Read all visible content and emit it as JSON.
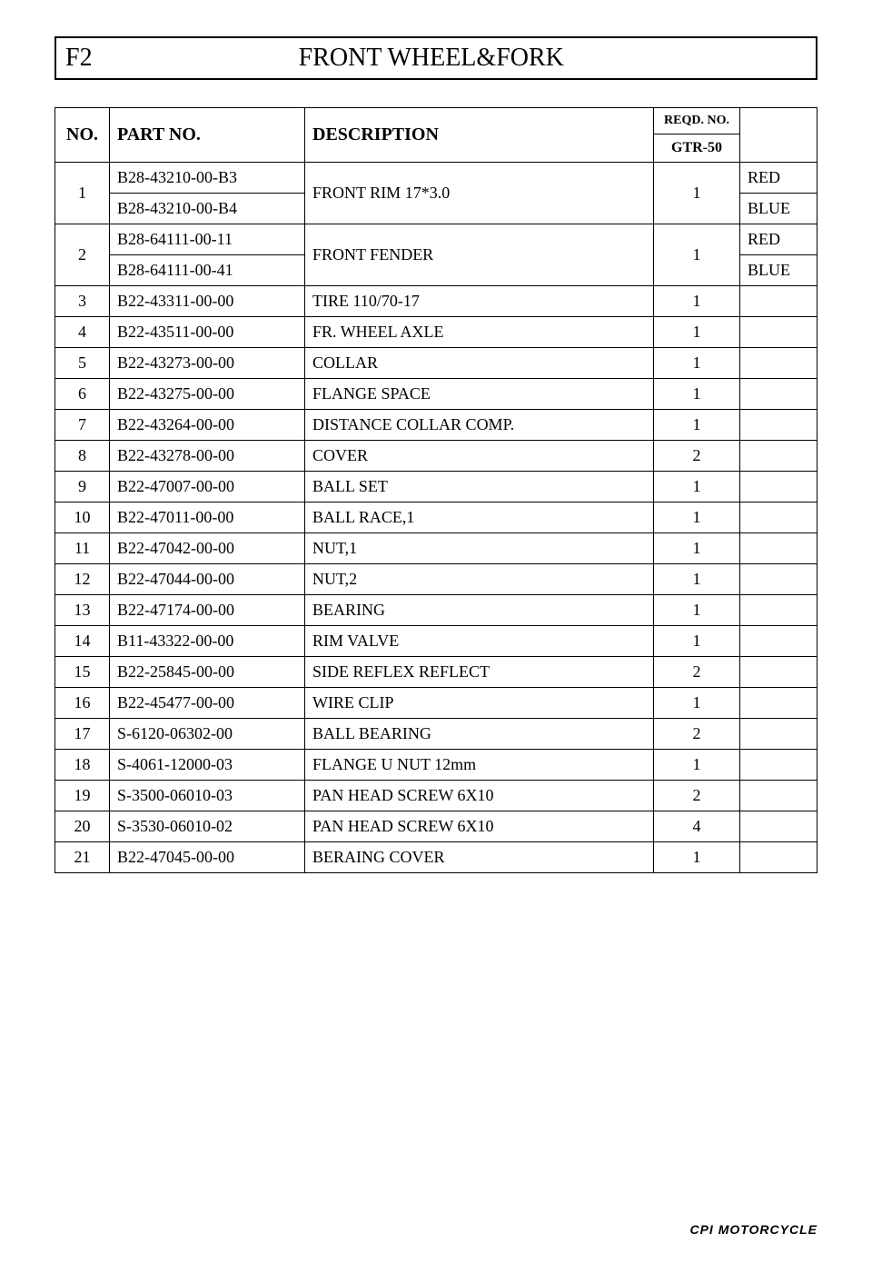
{
  "header": {
    "code": "F2",
    "title": "FRONT WHEEL&FORK"
  },
  "table": {
    "columns": {
      "no": "NO.",
      "part": "PART NO.",
      "desc": "DESCRIPTION",
      "reqd_top": "REQD. NO.",
      "reqd_bot": "GTR-50"
    },
    "groups": [
      {
        "no": "1",
        "desc": "FRONT RIM 17*3.0",
        "qty": "1",
        "subs": [
          {
            "part": "B28-43210-00-B3",
            "note": "RED"
          },
          {
            "part": "B28-43210-00-B4",
            "note": "BLUE"
          }
        ]
      },
      {
        "no": "2",
        "desc": "FRONT FENDER",
        "qty": "1",
        "subs": [
          {
            "part": "B28-64111-00-11",
            "note": "RED"
          },
          {
            "part": "B28-64111-00-41",
            "note": "BLUE"
          }
        ]
      },
      {
        "no": "3",
        "part": "B22-43311-00-00",
        "desc": "TIRE 110/70-17",
        "qty": "1",
        "note": ""
      },
      {
        "no": "4",
        "part": "B22-43511-00-00",
        "desc": "FR. WHEEL AXLE",
        "qty": "1",
        "note": ""
      },
      {
        "no": "5",
        "part": "B22-43273-00-00",
        "desc": "COLLAR",
        "qty": "1",
        "note": ""
      },
      {
        "no": "6",
        "part": "B22-43275-00-00",
        "desc": "FLANGE SPACE",
        "qty": "1",
        "note": ""
      },
      {
        "no": "7",
        "part": "B22-43264-00-00",
        "desc": "DISTANCE COLLAR COMP.",
        "qty": "1",
        "note": ""
      },
      {
        "no": "8",
        "part": "B22-43278-00-00",
        "desc": "COVER",
        "qty": "2",
        "note": ""
      },
      {
        "no": "9",
        "part": "B22-47007-00-00",
        "desc": "BALL SET",
        "qty": "1",
        "note": ""
      },
      {
        "no": "10",
        "part": "B22-47011-00-00",
        "desc": "BALL RACE,1",
        "qty": "1",
        "note": ""
      },
      {
        "no": "11",
        "part": "B22-47042-00-00",
        "desc": "NUT,1",
        "qty": "1",
        "note": ""
      },
      {
        "no": "12",
        "part": "B22-47044-00-00",
        "desc": "NUT,2",
        "qty": "1",
        "note": ""
      },
      {
        "no": "13",
        "part": "B22-47174-00-00",
        "desc": "BEARING",
        "qty": "1",
        "note": ""
      },
      {
        "no": "14",
        "part": "B11-43322-00-00",
        "desc": "RIM VALVE",
        "qty": "1",
        "note": ""
      },
      {
        "no": "15",
        "part": "B22-25845-00-00",
        "desc": "SIDE REFLEX REFLECT",
        "qty": "2",
        "note": ""
      },
      {
        "no": "16",
        "part": "B22-45477-00-00",
        "desc": "WIRE CLIP",
        "qty": "1",
        "note": ""
      },
      {
        "no": "17",
        "part": "S-6120-06302-00",
        "desc": "BALL BEARING",
        "qty": "2",
        "note": ""
      },
      {
        "no": "18",
        "part": "S-4061-12000-03",
        "desc": "FLANGE U NUT 12mm",
        "qty": "1",
        "note": ""
      },
      {
        "no": "19",
        "part": "S-3500-06010-03",
        "desc": "PAN HEAD SCREW 6X10",
        "qty": "2",
        "note": ""
      },
      {
        "no": "20",
        "part": "S-3530-06010-02",
        "desc": "PAN HEAD SCREW 6X10",
        "qty": "4",
        "note": ""
      },
      {
        "no": "21",
        "part": "B22-47045-00-00",
        "desc": "BERAING COVER",
        "qty": "1",
        "note": ""
      }
    ]
  },
  "footer": "CPI  MOTORCYCLE"
}
